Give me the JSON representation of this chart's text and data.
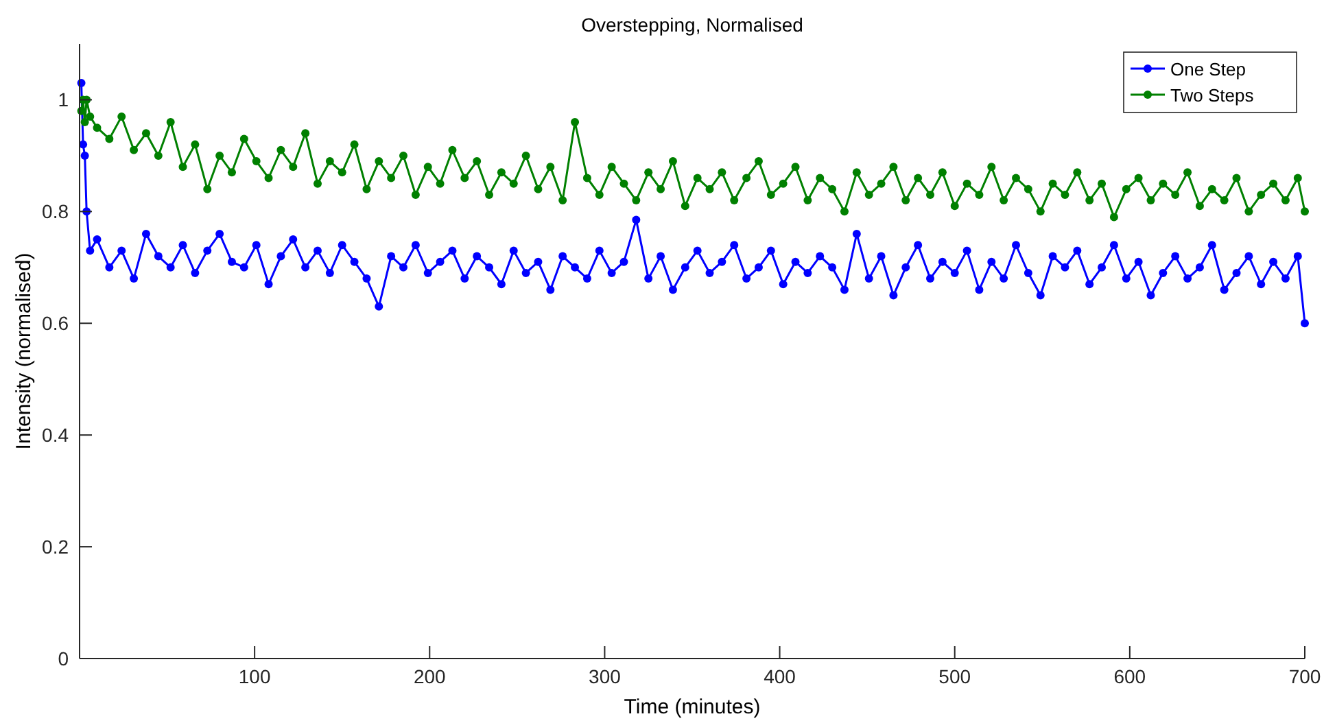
{
  "chart_data": {
    "type": "line",
    "title": "Overstepping, Normalised",
    "xlabel": "Time (minutes)",
    "ylabel": "Intensity (normalised)",
    "x": [
      1,
      2,
      3,
      4,
      6,
      10,
      17,
      24,
      31,
      38,
      45,
      52,
      59,
      66,
      73,
      80,
      87,
      94,
      101,
      108,
      115,
      122,
      129,
      136,
      143,
      150,
      157,
      164,
      171,
      178,
      185,
      192,
      199,
      206,
      213,
      220,
      227,
      234,
      241,
      248,
      255,
      262,
      269,
      276,
      283,
      290,
      297,
      304,
      311,
      318,
      325,
      332,
      339,
      346,
      353,
      360,
      367,
      374,
      381,
      388,
      395,
      402,
      409,
      416,
      423,
      430,
      437,
      444,
      451,
      458,
      465,
      472,
      479,
      486,
      493,
      500,
      507,
      514,
      521,
      528,
      535,
      542,
      549,
      556,
      563,
      570,
      577,
      584,
      591,
      598,
      605,
      612,
      619,
      626,
      633,
      640,
      647,
      654,
      661,
      668,
      675,
      682,
      689,
      696,
      700
    ],
    "series": [
      {
        "name": "One Step",
        "color": "#0000ff",
        "values": [
          1.03,
          0.92,
          0.9,
          0.8,
          0.73,
          0.75,
          0.7,
          0.73,
          0.68,
          0.76,
          0.72,
          0.7,
          0.74,
          0.69,
          0.73,
          0.76,
          0.71,
          0.7,
          0.74,
          0.67,
          0.72,
          0.75,
          0.7,
          0.73,
          0.69,
          0.74,
          0.71,
          0.68,
          0.63,
          0.72,
          0.7,
          0.74,
          0.69,
          0.71,
          0.73,
          0.68,
          0.72,
          0.7,
          0.67,
          0.73,
          0.69,
          0.71,
          0.66,
          0.72,
          0.7,
          0.68,
          0.73,
          0.69,
          0.71,
          0.785,
          0.68,
          0.72,
          0.66,
          0.7,
          0.73,
          0.69,
          0.71,
          0.74,
          0.68,
          0.7,
          0.73,
          0.67,
          0.71,
          0.69,
          0.72,
          0.7,
          0.66,
          0.76,
          0.68,
          0.72,
          0.65,
          0.7,
          0.74,
          0.68,
          0.71,
          0.69,
          0.73,
          0.66,
          0.71,
          0.68,
          0.74,
          0.69,
          0.65,
          0.72,
          0.7,
          0.73,
          0.67,
          0.7,
          0.74,
          0.68,
          0.71,
          0.65,
          0.69,
          0.72,
          0.68,
          0.7,
          0.74,
          0.66,
          0.69,
          0.72,
          0.67,
          0.71,
          0.68,
          0.72,
          0.6
        ]
      },
      {
        "name": "Two Steps",
        "color": "#008000",
        "values": [
          0.98,
          1.0,
          0.96,
          1.0,
          0.97,
          0.95,
          0.93,
          0.97,
          0.91,
          0.94,
          0.9,
          0.96,
          0.88,
          0.92,
          0.84,
          0.9,
          0.87,
          0.93,
          0.89,
          0.86,
          0.91,
          0.88,
          0.94,
          0.85,
          0.89,
          0.87,
          0.92,
          0.84,
          0.89,
          0.86,
          0.9,
          0.83,
          0.88,
          0.85,
          0.91,
          0.86,
          0.89,
          0.83,
          0.87,
          0.85,
          0.9,
          0.84,
          0.88,
          0.82,
          0.96,
          0.86,
          0.83,
          0.88,
          0.85,
          0.82,
          0.87,
          0.84,
          0.89,
          0.81,
          0.86,
          0.84,
          0.87,
          0.82,
          0.86,
          0.89,
          0.83,
          0.85,
          0.88,
          0.82,
          0.86,
          0.84,
          0.8,
          0.87,
          0.83,
          0.85,
          0.88,
          0.82,
          0.86,
          0.83,
          0.87,
          0.81,
          0.85,
          0.83,
          0.88,
          0.82,
          0.86,
          0.84,
          0.8,
          0.85,
          0.83,
          0.87,
          0.82,
          0.85,
          0.79,
          0.84,
          0.86,
          0.82,
          0.85,
          0.83,
          0.87,
          0.81,
          0.84,
          0.82,
          0.86,
          0.8,
          0.83,
          0.85,
          0.82,
          0.86,
          0.8
        ]
      }
    ],
    "xlim": [
      0,
      700
    ],
    "ylim": [
      0,
      1.1
    ],
    "xticks": [
      100,
      200,
      300,
      400,
      500,
      600,
      700
    ],
    "yticks": [
      0,
      {
        "value": 0.2,
        "label": "0.2"
      },
      {
        "value": 0.4,
        "label": "0.4"
      },
      {
        "value": 0.6,
        "label": "0.6"
      },
      {
        "value": 0.8,
        "label": "0.8"
      },
      1
    ],
    "legend": "top right",
    "marker": "circle",
    "line_style": "solid",
    "grid": false
  }
}
